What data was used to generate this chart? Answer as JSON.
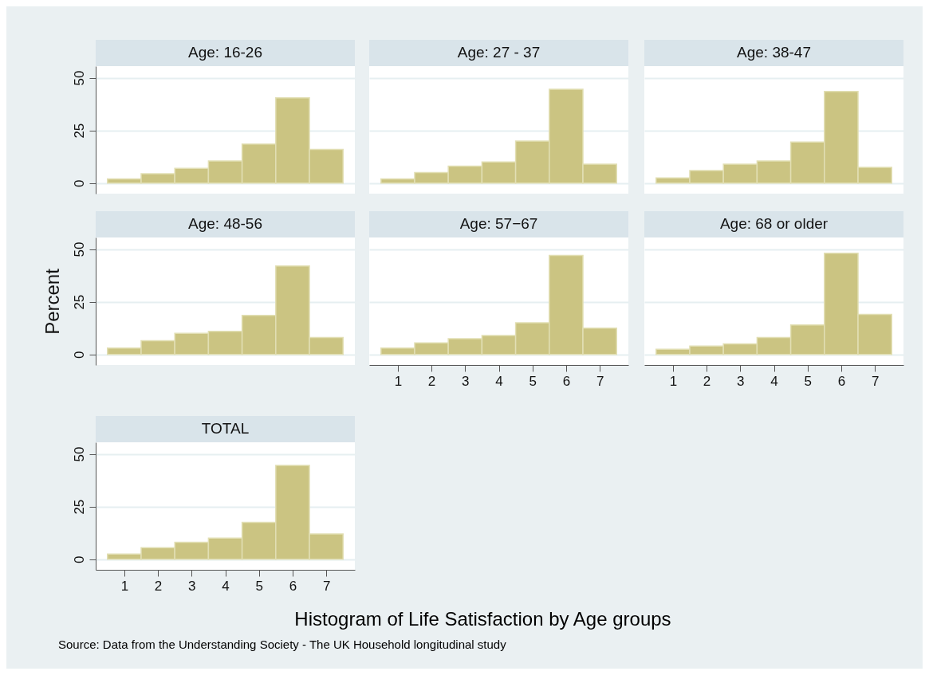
{
  "chart_data": [
    {
      "type": "histogram",
      "title": "Age: 16-26",
      "bins": [
        0.5,
        1.5,
        2.5,
        3.5,
        4.5,
        5.5,
        6.5,
        7.5
      ],
      "values": [
        2,
        4.5,
        7,
        10.5,
        18.5,
        40.5,
        16
      ],
      "color": "#cbc482",
      "xlim": [
        0.15,
        7.85
      ],
      "ylim": [
        -5,
        55.5
      ],
      "yticks": [
        0,
        25,
        50
      ],
      "grid": "y",
      "tick_labels": "y"
    },
    {
      "type": "histogram",
      "title": "Age: 27 - 37",
      "bins": [
        0.5,
        1.5,
        2.5,
        3.5,
        4.5,
        5.5,
        6.5,
        7.5
      ],
      "values": [
        2,
        5,
        8,
        10,
        20,
        44.5,
        9
      ],
      "color": "#cbc482",
      "xlim": [
        0.15,
        7.85
      ],
      "ylim": [
        -5,
        55.5
      ],
      "yticks": [
        0,
        25,
        50
      ],
      "grid": "y",
      "tick_labels": false
    },
    {
      "type": "histogram",
      "title": "Age: 38-47",
      "bins": [
        0.5,
        1.5,
        2.5,
        3.5,
        4.5,
        5.5,
        6.5,
        7.5
      ],
      "values": [
        2.5,
        6,
        9,
        10.5,
        19.5,
        43.5,
        7.5
      ],
      "color": "#cbc482",
      "xlim": [
        0.15,
        7.85
      ],
      "ylim": [
        -5,
        55.5
      ],
      "yticks": [
        0,
        25,
        50
      ],
      "grid": "y",
      "tick_labels": false
    },
    {
      "type": "histogram",
      "title": "Age: 48-56",
      "ylabel": "Percent",
      "bins": [
        0.5,
        1.5,
        2.5,
        3.5,
        4.5,
        5.5,
        6.5,
        7.5
      ],
      "values": [
        3,
        6.5,
        10,
        11,
        18.5,
        42,
        8
      ],
      "color": "#cbc482",
      "xlim": [
        0.15,
        7.85
      ],
      "ylim": [
        -5,
        55.5
      ],
      "yticks": [
        0,
        25,
        50
      ],
      "grid": "y",
      "tick_labels": "y"
    },
    {
      "type": "histogram",
      "title": "Age: 57−67",
      "bins": [
        0.5,
        1.5,
        2.5,
        3.5,
        4.5,
        5.5,
        6.5,
        7.5
      ],
      "values": [
        3,
        5.5,
        7.5,
        9,
        15,
        47,
        12.5
      ],
      "color": "#cbc482",
      "xlim": [
        0.15,
        7.85
      ],
      "xticks": [
        1,
        2,
        3,
        4,
        5,
        6,
        7
      ],
      "ylim": [
        -5,
        55.5
      ],
      "yticks": [
        0,
        25,
        50
      ],
      "grid": "y",
      "tick_labels": "x"
    },
    {
      "type": "histogram",
      "title": "Age: 68 or older",
      "bins": [
        0.5,
        1.5,
        2.5,
        3.5,
        4.5,
        5.5,
        6.5,
        7.5
      ],
      "values": [
        2.5,
        4,
        5,
        8,
        14,
        48,
        19
      ],
      "color": "#cbc482",
      "xlim": [
        0.15,
        7.85
      ],
      "xticks": [
        1,
        2,
        3,
        4,
        5,
        6,
        7
      ],
      "ylim": [
        -5,
        55.5
      ],
      "yticks": [
        0,
        25,
        50
      ],
      "grid": "y",
      "tick_labels": "x"
    },
    {
      "type": "histogram",
      "title": "TOTAL",
      "bins": [
        0.5,
        1.5,
        2.5,
        3.5,
        4.5,
        5.5,
        6.5,
        7.5
      ],
      "values": [
        2.5,
        5.5,
        8,
        10,
        17.5,
        44.5,
        12
      ],
      "color": "#cbc482",
      "xlim": [
        0.15,
        7.85
      ],
      "xticks": [
        1,
        2,
        3,
        4,
        5,
        6,
        7
      ],
      "ylim": [
        -5,
        55.5
      ],
      "yticks": [
        0,
        25,
        50
      ],
      "grid": "y",
      "annotations": [
        "Histogram of Life Satisfaction by Age groups",
        "Source: Data from the Understanding Society - The UK Household longitudinal study"
      ]
    }
  ]
}
